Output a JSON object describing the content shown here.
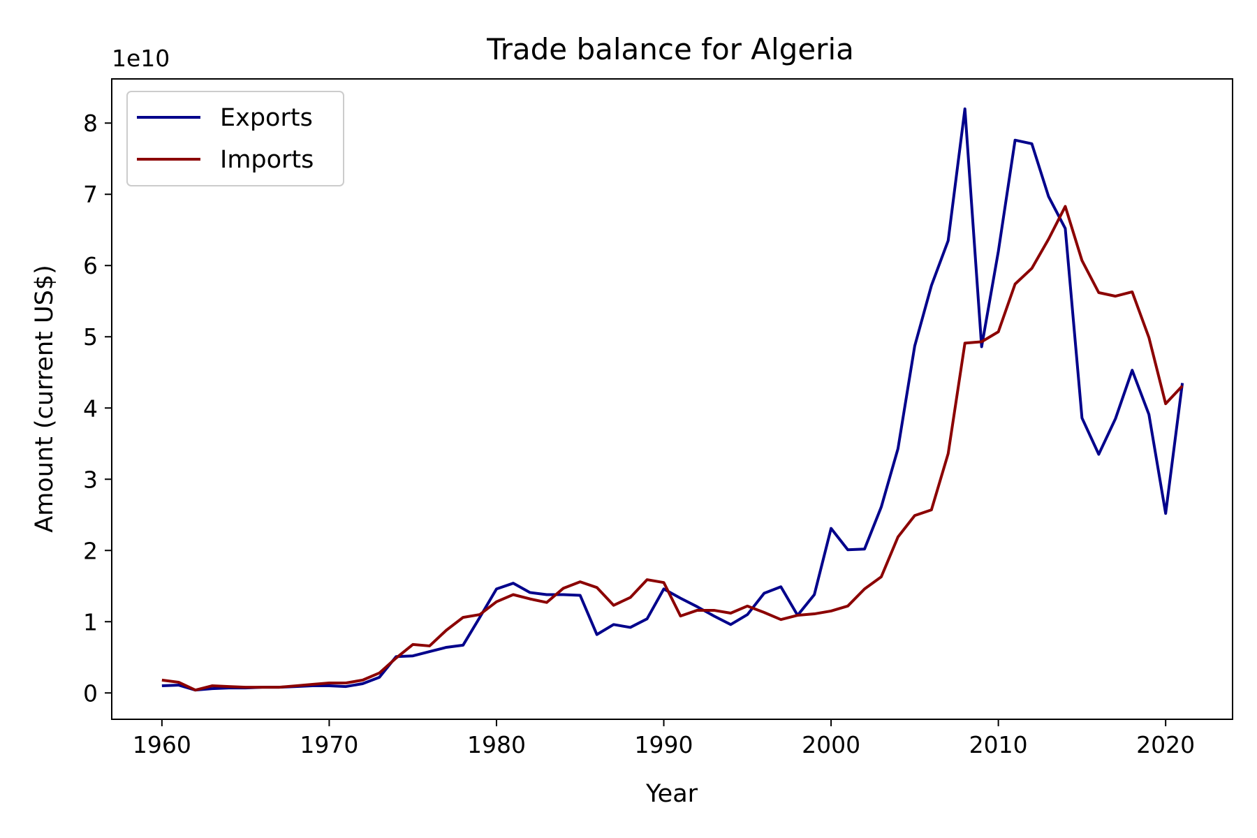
{
  "chart_data": {
    "type": "line",
    "title": "Trade balance for Algeria",
    "xlabel": "Year",
    "ylabel": "Amount (current US$)",
    "y_offset_label": "1e10",
    "xlim": [
      1957,
      2024
    ],
    "ylim": [
      -0.37,
      8.62
    ],
    "x_ticks": [
      1960,
      1970,
      1980,
      1990,
      2000,
      2010,
      2020
    ],
    "x_tick_labels": [
      "1960",
      "1970",
      "1980",
      "1990",
      "2000",
      "2010",
      "2020"
    ],
    "y_ticks": [
      0,
      1,
      2,
      3,
      4,
      5,
      6,
      7,
      8
    ],
    "y_tick_labels": [
      "0",
      "1",
      "2",
      "3",
      "4",
      "5",
      "6",
      "7",
      "8"
    ],
    "y_units_note": "values are in units of 1e10 current US$",
    "grid": false,
    "legend_position": "top-left",
    "x": [
      1960,
      1961,
      1962,
      1963,
      1964,
      1965,
      1966,
      1967,
      1968,
      1969,
      1970,
      1971,
      1972,
      1973,
      1974,
      1975,
      1976,
      1977,
      1978,
      1979,
      1980,
      1981,
      1982,
      1983,
      1984,
      1985,
      1986,
      1987,
      1988,
      1989,
      1990,
      1991,
      1992,
      1993,
      1994,
      1995,
      1996,
      1997,
      1998,
      1999,
      2000,
      2001,
      2002,
      2003,
      2004,
      2005,
      2006,
      2007,
      2008,
      2009,
      2010,
      2011,
      2012,
      2013,
      2014,
      2015,
      2016,
      2017,
      2018,
      2019,
      2020,
      2021
    ],
    "series": [
      {
        "name": "Exports",
        "color": "#00008b",
        "values": [
          0.1,
          0.11,
          0.04,
          0.06,
          0.07,
          0.07,
          0.08,
          0.08,
          0.09,
          0.1,
          0.1,
          0.09,
          0.13,
          0.22,
          0.51,
          0.52,
          0.58,
          0.64,
          0.67,
          1.06,
          1.46,
          1.54,
          1.41,
          1.38,
          1.38,
          1.37,
          0.82,
          0.96,
          0.92,
          1.04,
          1.46,
          1.33,
          1.21,
          1.08,
          0.96,
          1.1,
          1.4,
          1.49,
          1.09,
          1.38,
          2.31,
          2.01,
          2.02,
          2.61,
          3.43,
          4.87,
          5.72,
          6.35,
          8.2,
          4.86,
          6.2,
          7.76,
          7.71,
          6.97,
          6.52,
          3.86,
          3.35,
          3.85,
          4.53,
          3.91,
          2.52,
          4.35
        ]
      },
      {
        "name": "Imports",
        "color": "#8b0000",
        "values": [
          0.18,
          0.15,
          0.04,
          0.1,
          0.09,
          0.08,
          0.08,
          0.08,
          0.1,
          0.12,
          0.14,
          0.14,
          0.18,
          0.28,
          0.49,
          0.68,
          0.66,
          0.88,
          1.06,
          1.1,
          1.28,
          1.38,
          1.32,
          1.27,
          1.47,
          1.56,
          1.48,
          1.23,
          1.34,
          1.59,
          1.55,
          1.08,
          1.16,
          1.16,
          1.12,
          1.22,
          1.13,
          1.03,
          1.09,
          1.11,
          1.15,
          1.22,
          1.46,
          1.63,
          2.19,
          2.49,
          2.57,
          3.36,
          4.91,
          4.93,
          5.07,
          5.74,
          5.96,
          6.37,
          6.83,
          6.07,
          5.62,
          5.57,
          5.63,
          4.99,
          4.06,
          4.31
        ]
      }
    ]
  }
}
